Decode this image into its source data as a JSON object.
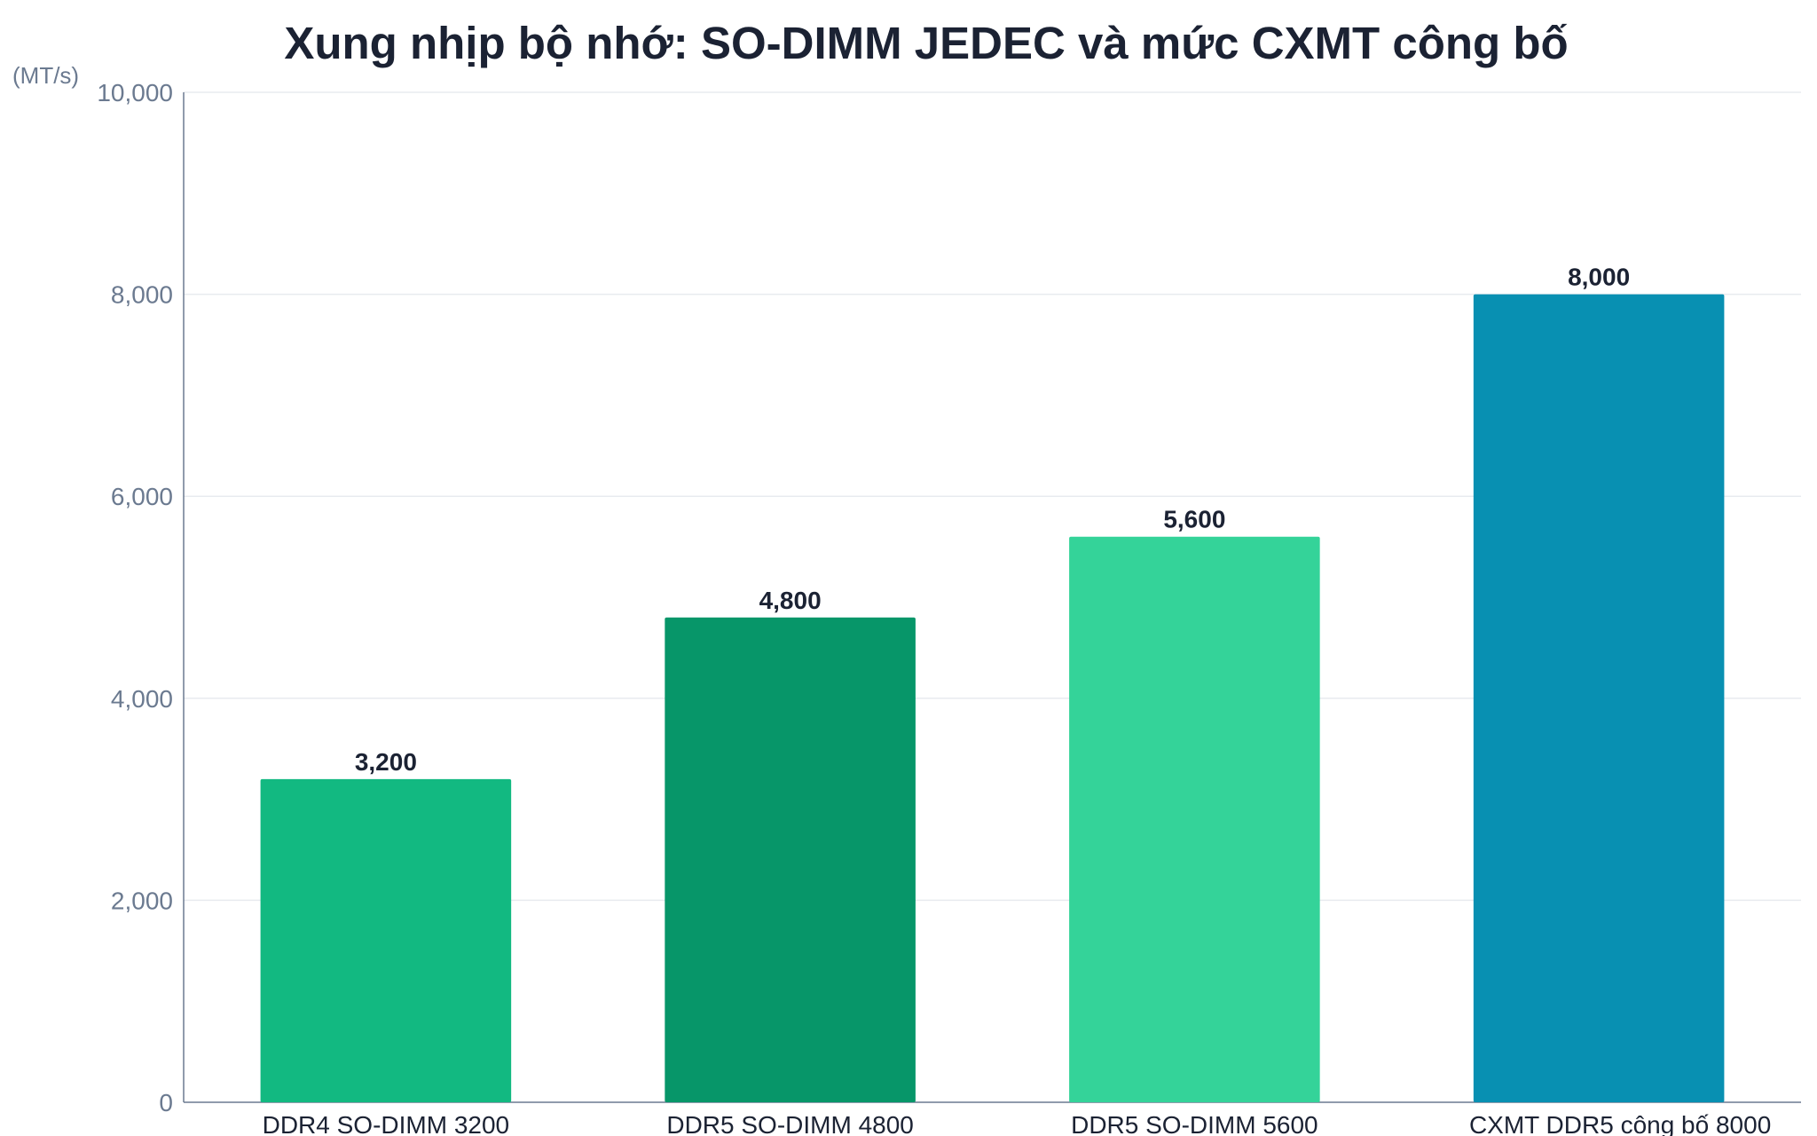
{
  "chart_data": {
    "type": "bar",
    "title": "Xung nhịp bộ nhớ: SO-DIMM JEDEC và mức CXMT công bố",
    "ylabel": "(MT/s)",
    "xlabel": "",
    "categories": [
      "DDR4 SO-DIMM 3200",
      "DDR5 SO-DIMM 4800",
      "DDR5 SO-DIMM 5600",
      "CXMT DDR5 công bố 8000"
    ],
    "values": [
      3200,
      4800,
      5600,
      8000
    ],
    "value_labels": [
      "3,200",
      "4,800",
      "5,600",
      "8,000"
    ],
    "ylim": [
      0,
      10000
    ],
    "yticks": [
      0,
      2000,
      4000,
      6000,
      8000,
      10000
    ],
    "ytick_labels": [
      "0",
      "2,000",
      "4,000",
      "6,000",
      "8,000",
      "10,000"
    ],
    "bar_colors": [
      "#12b981",
      "#079669",
      "#34d399",
      "#0890b2"
    ],
    "grid": true,
    "legend": "none"
  }
}
